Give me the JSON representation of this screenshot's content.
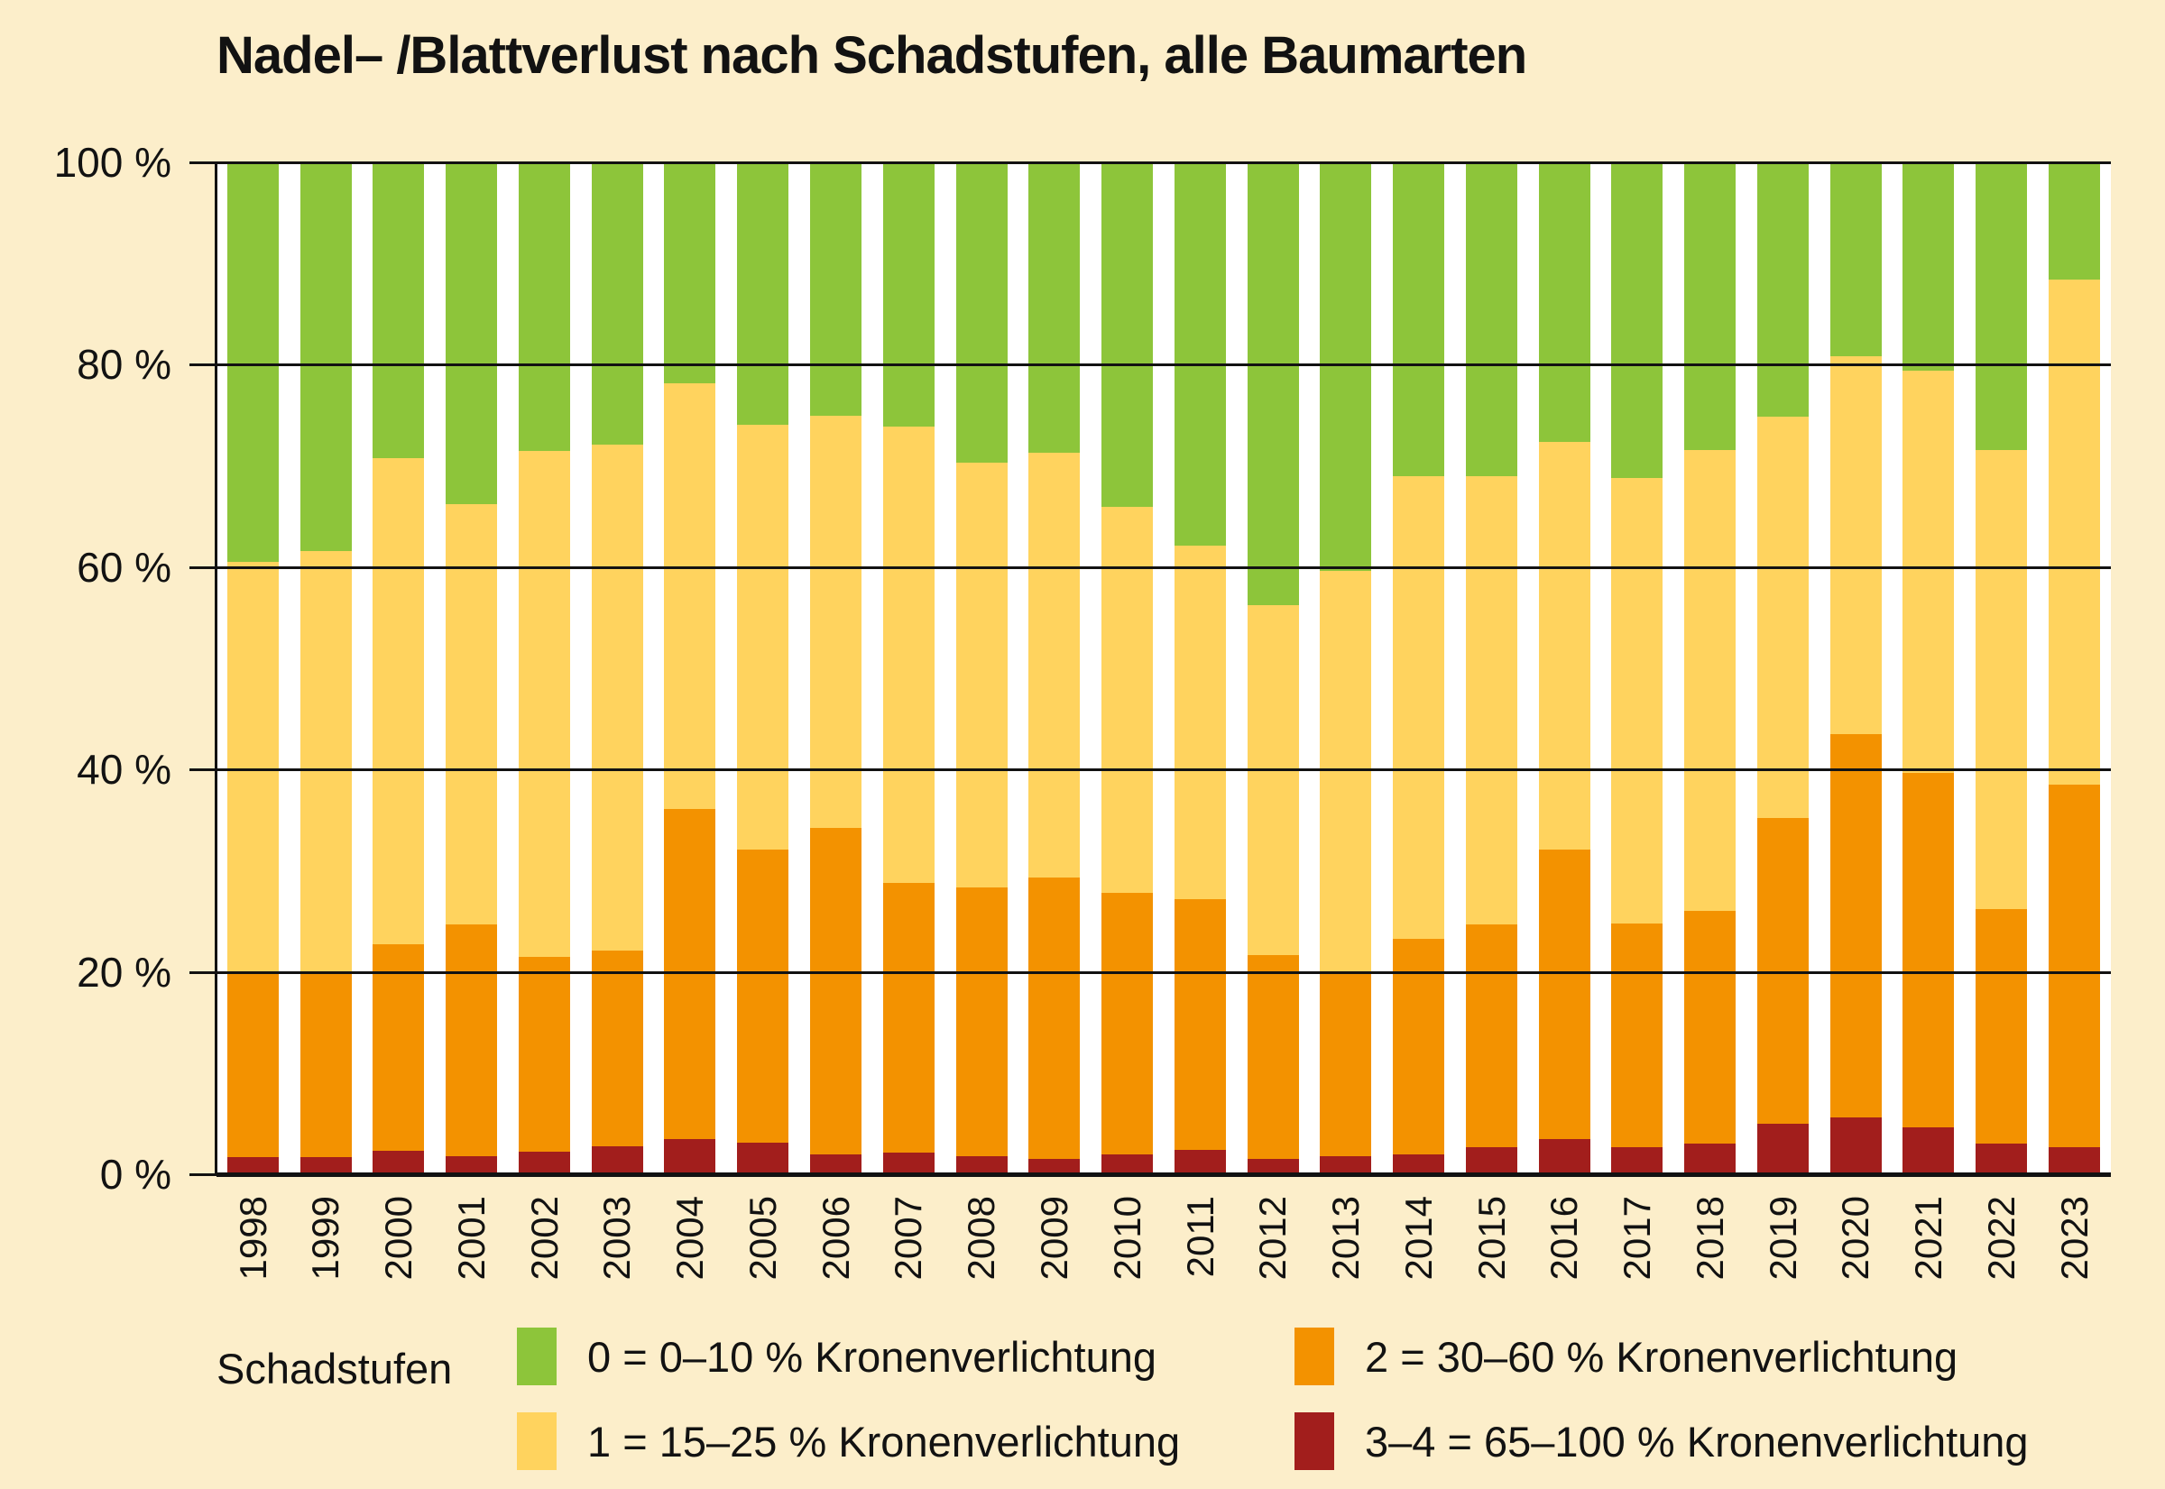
{
  "title": "Nadel– /Blattverlust nach Schadstufen, alle Baumarten",
  "colors": {
    "background": "#FCEECA",
    "plot_background": "#FFFFFF",
    "axis_and_text": "#121212",
    "schadstufe_0_green": "#8DC53A",
    "schadstufe_1_yellow": "#FFD35E",
    "schadstufe_2_orange": "#F39200",
    "schadstufe_3_4_red": "#A21E1C"
  },
  "chart_data": {
    "type": "bar",
    "stacked": true,
    "unit": "%",
    "title": "Nadel– /Blattverlust nach Schadstufen, alle Baumarten",
    "xlabel": "",
    "ylabel": "",
    "ylim": [
      0,
      100
    ],
    "grid": true,
    "legend_position": "bottom",
    "categories": [
      "1998",
      "1999",
      "2000",
      "2001",
      "2002",
      "2003",
      "2004",
      "2005",
      "2006",
      "2007",
      "2008",
      "2009",
      "2010",
      "2011",
      "2012",
      "2013",
      "2014",
      "2015",
      "2016",
      "2017",
      "2018",
      "2019",
      "2020",
      "2021",
      "2022",
      "2023"
    ],
    "yticks": [
      {
        "value": 0,
        "label": "0 %"
      },
      {
        "value": 20,
        "label": "20 %"
      },
      {
        "value": 40,
        "label": "40 %"
      },
      {
        "value": 60,
        "label": "60 %"
      },
      {
        "value": 80,
        "label": "80 %"
      },
      {
        "value": 100,
        "label": "100 %"
      }
    ],
    "series": [
      {
        "name": "3–4 = 65–100 % Kronenverlichtung",
        "key": "schadstufe_3_4",
        "color": "#A21E1C",
        "values": [
          1.7,
          1.7,
          2.3,
          1.8,
          2.2,
          2.8,
          3.5,
          3.1,
          2.0,
          2.1,
          1.8,
          1.5,
          2.0,
          2.4,
          1.5,
          1.8,
          2.0,
          2.7,
          3.5,
          2.7,
          3.0,
          5.0,
          5.6,
          4.6,
          3.0,
          2.7
        ]
      },
      {
        "name": "2 = 30–60 % Kronenverlichtung",
        "key": "schadstufe_2",
        "color": "#F39200",
        "values": [
          18.2,
          18.2,
          20.4,
          22.9,
          19.3,
          19.3,
          32.6,
          29.0,
          32.2,
          26.7,
          26.5,
          27.8,
          25.8,
          24.8,
          20.2,
          18.3,
          21.3,
          22.0,
          28.6,
          22.1,
          23.0,
          30.2,
          37.9,
          35.1,
          23.2,
          35.8
        ]
      },
      {
        "name": "1 = 15–25 % Kronenverlichtung",
        "key": "schadstufe_1",
        "color": "#FFD35E",
        "values": [
          40.6,
          41.7,
          48.1,
          41.5,
          50.0,
          50.0,
          42.1,
          42.0,
          40.8,
          45.1,
          42.0,
          42.0,
          38.2,
          34.9,
          34.5,
          39.5,
          45.7,
          44.3,
          40.3,
          44.0,
          45.6,
          39.7,
          37.3,
          39.7,
          45.4,
          49.9
        ]
      },
      {
        "name": "0 = 0–10 % Kronenverlichtung",
        "key": "schadstufe_0",
        "color": "#8DC53A",
        "values": [
          39.5,
          38.4,
          29.2,
          33.8,
          28.5,
          27.9,
          21.8,
          25.9,
          25.0,
          26.1,
          29.7,
          28.7,
          34.0,
          37.9,
          43.8,
          40.4,
          31.0,
          31.0,
          27.6,
          31.2,
          28.4,
          25.1,
          19.2,
          20.6,
          28.4,
          11.6
        ]
      }
    ]
  },
  "legend": {
    "title": "Schadstufen",
    "columns": [
      [
        {
          "label": "0 = 0–10 % Kronenverlichtung",
          "color": "#8DC53A",
          "series_key": "schadstufe_0"
        },
        {
          "label": "1 = 15–25 % Kronenverlichtung",
          "color": "#FFD35E",
          "series_key": "schadstufe_1"
        }
      ],
      [
        {
          "label": "2 = 30–60 % Kronenverlichtung",
          "color": "#F39200",
          "series_key": "schadstufe_2"
        },
        {
          "label": "3–4 = 65–100 % Kronenverlichtung",
          "color": "#A21E1C",
          "series_key": "schadstufe_3_4"
        }
      ]
    ]
  }
}
